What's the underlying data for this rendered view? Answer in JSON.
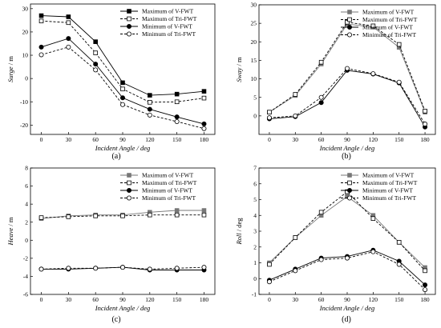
{
  "chart_data": [
    {
      "type": "line",
      "caption": "(a)",
      "xlabel": "Incident Angle / deg",
      "ylabel_main": "Surge",
      "ylabel_unit": " / m",
      "x": [
        0,
        30,
        60,
        90,
        120,
        150,
        180
      ],
      "xticks": [
        0,
        30,
        60,
        90,
        120,
        150,
        180
      ],
      "xlim": [
        -12,
        192
      ],
      "ylim": [
        -24,
        32
      ],
      "yticks": [
        -20,
        -10,
        0,
        10,
        20,
        30
      ],
      "legend": "top-right",
      "grid": false,
      "series": [
        {
          "name": "Maximum of V-FWT",
          "values": [
            27,
            26.5,
            15.8,
            -1.8,
            -7.2,
            -6.7,
            -5.5
          ],
          "color": "#000000",
          "marker": "square-filled",
          "dash": "solid"
        },
        {
          "name": "Maximum of Tri-FWT",
          "values": [
            24.7,
            24,
            11,
            -4.5,
            -10.2,
            -10,
            -8.4
          ],
          "color": "#000000",
          "marker": "square-open",
          "dash": "dashed"
        },
        {
          "name": "Minimum of V-FWT",
          "values": [
            13.5,
            17.2,
            6.2,
            -8.3,
            -13.2,
            -16.5,
            -19.5
          ],
          "color": "#000000",
          "marker": "circle-filled",
          "dash": "solid"
        },
        {
          "name": "Minimum of Tri-FWT",
          "values": [
            10.2,
            13.5,
            3.7,
            -11.2,
            -15.7,
            -18.5,
            -21.5
          ],
          "color": "#000000",
          "marker": "circle-open",
          "dash": "dashed"
        }
      ]
    },
    {
      "type": "line",
      "caption": "(b)",
      "xlabel": "Incident Angle / deg",
      "ylabel_main": "Sway",
      "ylabel_unit": " / m",
      "x": [
        0,
        30,
        60,
        90,
        120,
        150,
        180
      ],
      "xticks": [
        0,
        30,
        60,
        90,
        120,
        150,
        180
      ],
      "xlim": [
        -12,
        192
      ],
      "ylim": [
        -5,
        30
      ],
      "yticks": [
        0,
        5,
        10,
        15,
        20,
        25,
        30
      ],
      "legend": "top-right",
      "grid": false,
      "series": [
        {
          "name": "Maximum of V-FWT",
          "values": [
            1,
            5.5,
            14,
            24.8,
            24,
            18.5,
            1
          ],
          "color": "#777777",
          "marker": "square-filled",
          "dash": "solid"
        },
        {
          "name": "Maximum of Tri-FWT",
          "values": [
            1,
            5.8,
            14.5,
            25.3,
            24.3,
            19.3,
            1.3
          ],
          "color": "#000000",
          "marker": "square-open",
          "dash": "dashed"
        },
        {
          "name": "Minimum of V-FWT",
          "values": [
            -0.8,
            -0.2,
            3.6,
            12.3,
            11.3,
            8.9,
            -3
          ],
          "color": "#000000",
          "marker": "circle-filled",
          "dash": "solid"
        },
        {
          "name": "Minimum of Tri-FWT",
          "values": [
            -0.5,
            0,
            5,
            12.8,
            11.4,
            9.1,
            -2.2
          ],
          "color": "#000000",
          "marker": "circle-open",
          "dash": "dashed"
        }
      ]
    },
    {
      "type": "line",
      "caption": "(c)",
      "xlabel": "Incident Angle / deg",
      "ylabel_main": "Heave",
      "ylabel_unit": " / m",
      "x": [
        0,
        30,
        60,
        90,
        120,
        150,
        180
      ],
      "xticks": [
        0,
        30,
        60,
        90,
        120,
        150,
        180
      ],
      "xlim": [
        -12,
        192
      ],
      "ylim": [
        -6,
        8
      ],
      "yticks": [
        -6,
        -4,
        -2,
        0,
        2,
        4,
        6,
        8
      ],
      "legend": "top-right",
      "grid": false,
      "series": [
        {
          "name": "Maximum of V-FWT",
          "values": [
            2.4,
            2.7,
            2.8,
            2.8,
            3.1,
            3.3,
            3.3
          ],
          "color": "#777777",
          "marker": "square-filled",
          "dash": "solid"
        },
        {
          "name": "Maximum of Tri-FWT",
          "values": [
            2.5,
            2.6,
            2.7,
            2.7,
            2.8,
            2.8,
            2.8
          ],
          "color": "#000000",
          "marker": "square-open",
          "dash": "dashed"
        },
        {
          "name": "Minimum of V-FWT",
          "values": [
            -3.2,
            -3.2,
            -3.1,
            -3.0,
            -3.3,
            -3.3,
            -3.3
          ],
          "color": "#000000",
          "marker": "circle-filled",
          "dash": "solid"
        },
        {
          "name": "Minimum of Tri-FWT",
          "values": [
            -3.2,
            -3.1,
            -3.1,
            -3.0,
            -3.2,
            -3.1,
            -3.0
          ],
          "color": "#000000",
          "marker": "circle-open",
          "dash": "dashed"
        }
      ]
    },
    {
      "type": "line",
      "caption": "(d)",
      "xlabel": "Incident Angle / deg",
      "ylabel_main": "Roll",
      "ylabel_unit": " / deg",
      "x": [
        0,
        30,
        60,
        90,
        120,
        150,
        180
      ],
      "xticks": [
        0,
        30,
        60,
        90,
        120,
        150,
        180
      ],
      "xlim": [
        -12,
        192
      ],
      "ylim": [
        -1,
        7
      ],
      "yticks": [
        -1,
        0,
        1,
        2,
        3,
        4,
        5,
        6,
        7
      ],
      "legend": "top-right",
      "grid": false,
      "series": [
        {
          "name": "Maximum of V-FWT",
          "values": [
            1.0,
            2.6,
            4.0,
            5.2,
            4.0,
            2.3,
            0.7
          ],
          "color": "#777777",
          "marker": "square-filled",
          "dash": "solid"
        },
        {
          "name": "Maximum of Tri-FWT",
          "values": [
            0.9,
            2.6,
            4.2,
            5.5,
            3.8,
            2.3,
            0.5
          ],
          "color": "#000000",
          "marker": "square-open",
          "dash": "dashed"
        },
        {
          "name": "Minimum of V-FWT",
          "values": [
            -0.1,
            0.6,
            1.3,
            1.4,
            1.8,
            1.1,
            -0.4
          ],
          "color": "#000000",
          "marker": "circle-filled",
          "dash": "solid"
        },
        {
          "name": "Minimum of Tri-FWT",
          "values": [
            -0.2,
            0.5,
            1.2,
            1.3,
            1.7,
            0.9,
            -0.7
          ],
          "color": "#000000",
          "marker": "circle-open",
          "dash": "dashed"
        }
      ]
    }
  ]
}
